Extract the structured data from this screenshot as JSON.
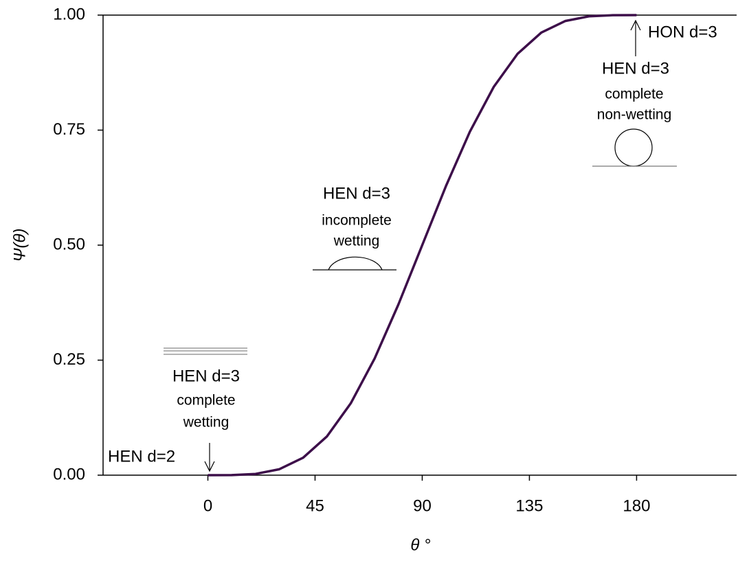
{
  "chart_data": {
    "type": "line",
    "x_label": "θ °",
    "y_label": "Ψ(θ)",
    "x": [
      0,
      10,
      20,
      30,
      40,
      50,
      60,
      70,
      80,
      90,
      100,
      110,
      120,
      130,
      140,
      150,
      160,
      170,
      180
    ],
    "series": [
      {
        "color": "#3d0f4a",
        "values": [
          0,
          0.0002,
          0.0027,
          0.0129,
          0.0379,
          0.0843,
          0.1563,
          0.2535,
          0.3711,
          0.5,
          0.6289,
          0.7465,
          0.8438,
          0.9157,
          0.9621,
          0.9871,
          0.9973,
          0.9998,
          1
        ]
      }
    ],
    "xlim": [
      -44,
      222
    ],
    "xticks": [
      0,
      45,
      90,
      135,
      180
    ],
    "ylim": [
      0,
      1
    ],
    "yticks": [
      {
        "value": 0,
        "label": "0.00"
      },
      {
        "value": 0.25,
        "label": "0.25"
      },
      {
        "value": 0.5,
        "label": "0.50"
      },
      {
        "value": 0.75,
        "label": "0.75"
      },
      {
        "value": 1,
        "label": "1.00"
      }
    ],
    "grid": false,
    "annotations": [
      "HON d=3",
      "HEN d=3",
      "complete",
      "non-wetting",
      "HEN d=3",
      "incomplete",
      "wetting",
      "HEN d=3",
      "complete",
      "wetting",
      "HEN d=2"
    ]
  }
}
